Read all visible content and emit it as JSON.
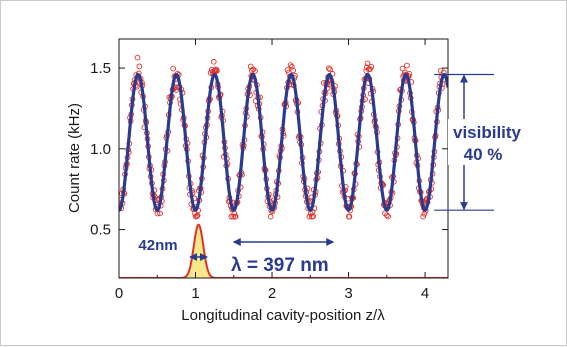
{
  "chart_data": {
    "type": "scatter",
    "xlabel": "Longitudinal cavity-position  z/λ",
    "ylabel": "Count rate (kHz)",
    "xlim": [
      0,
      4.3
    ],
    "ylim": [
      0.2,
      1.68
    ],
    "xticks": [
      "0",
      "1",
      "2",
      "3",
      "4"
    ],
    "yticks": [
      "0.5",
      "1.0",
      "1.5"
    ],
    "grid": false,
    "series": [
      {
        "kind": "data points",
        "marker": "open circle",
        "color": "#e0302a",
        "trend": "noisy samples scattered around the fit curve, period 0.5 z/λ",
        "y_range": [
          0.58,
          1.62
        ]
      },
      {
        "kind": "fit",
        "model": "y = 1.04 + 0.42 * cos(4π(x - 0.25))",
        "offset": 1.04,
        "amplitude": 0.42,
        "period": 0.5,
        "phase_peak_x": 0.25,
        "color": "#2a3b8f"
      },
      {
        "kind": "gaussian profile",
        "center": 1.04,
        "fwhm_label": "42nm",
        "peak": 0.53,
        "baseline": 0.2,
        "fill": "#f7e98a",
        "color": "#e0302a"
      }
    ],
    "annotations": {
      "fwhm": "42nm",
      "wavelength": "λ = 397 nm",
      "visibility_line1": "visibility",
      "visibility_line2": "40 %"
    },
    "visibility_levels": [
      1.46,
      0.62
    ]
  }
}
